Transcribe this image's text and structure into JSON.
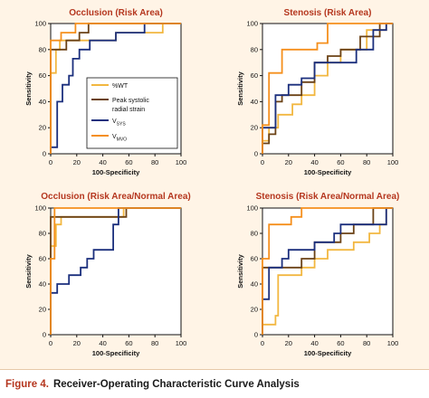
{
  "colors": {
    "panel_background": "#fff4e6",
    "plot_background": "#ffffff",
    "title": "#b5371f",
    "caption_label": "#b5371f",
    "series_wt": "#f2b740",
    "series_strain": "#6b4216",
    "series_vsys": "#1b2f7d",
    "series_vmvo": "#f58f1c"
  },
  "caption": {
    "label": "Figure 4.",
    "text": "Receiver-Operating Characteristic Curve Analysis"
  },
  "legend": {
    "placement": "inside first chart, lower-right",
    "entries": [
      {
        "text": "%WT",
        "color": "#f2b740"
      },
      {
        "text": "Peak systolic",
        "text2": "radial strain",
        "color": "#6b4216"
      },
      {
        "text": "V",
        "sub": "SYS",
        "color": "#1b2f7d"
      },
      {
        "text": "V",
        "sub": "MVO",
        "color": "#f58f1c"
      }
    ]
  },
  "chart_data": [
    {
      "type": "line",
      "title": "Occlusion (Risk Area)",
      "xlabel": "100-Specificity",
      "ylabel": "Sensitivity",
      "xlim": [
        0,
        100
      ],
      "ylim": [
        0,
        100
      ],
      "xticks": [
        0,
        20,
        40,
        60,
        80,
        100
      ],
      "yticks": [
        0,
        20,
        40,
        60,
        80,
        100
      ],
      "series": [
        {
          "key": "wt",
          "color": "#f2b740",
          "points": [
            [
              0,
              0
            ],
            [
              0,
              62
            ],
            [
              4,
              62
            ],
            [
              4,
              80
            ],
            [
              7,
              80
            ],
            [
              7,
              87
            ],
            [
              50,
              87
            ],
            [
              50,
              93
            ],
            [
              86,
              93
            ],
            [
              86,
              100
            ],
            [
              100,
              100
            ]
          ]
        },
        {
          "key": "strain",
          "color": "#6b4216",
          "points": [
            [
              0,
              0
            ],
            [
              0,
              80
            ],
            [
              12,
              80
            ],
            [
              12,
              87
            ],
            [
              22,
              87
            ],
            [
              22,
              93
            ],
            [
              29,
              93
            ],
            [
              29,
              100
            ],
            [
              100,
              100
            ]
          ]
        },
        {
          "key": "vsys",
          "color": "#1b2f7d",
          "points": [
            [
              0,
              0
            ],
            [
              0,
              5
            ],
            [
              5,
              5
            ],
            [
              5,
              40
            ],
            [
              9,
              40
            ],
            [
              9,
              53
            ],
            [
              14,
              53
            ],
            [
              14,
              60
            ],
            [
              17,
              60
            ],
            [
              17,
              73
            ],
            [
              22,
              73
            ],
            [
              22,
              80
            ],
            [
              30,
              80
            ],
            [
              30,
              87
            ],
            [
              50,
              87
            ],
            [
              50,
              93
            ],
            [
              72,
              93
            ],
            [
              72,
              100
            ],
            [
              100,
              100
            ]
          ]
        },
        {
          "key": "vmvo",
          "color": "#f58f1c",
          "points": [
            [
              0,
              0
            ],
            [
              0,
              87
            ],
            [
              8,
              87
            ],
            [
              8,
              93
            ],
            [
              19,
              93
            ],
            [
              19,
              100
            ],
            [
              100,
              100
            ]
          ]
        }
      ]
    },
    {
      "type": "line",
      "title": "Stenosis (Risk Area)",
      "xlabel": "100-Specificity",
      "ylabel": "Sensitivity",
      "xlim": [
        0,
        100
      ],
      "ylim": [
        0,
        100
      ],
      "xticks": [
        0,
        20,
        40,
        60,
        80,
        100
      ],
      "yticks": [
        0,
        20,
        40,
        60,
        80,
        100
      ],
      "series": [
        {
          "key": "wt",
          "color": "#f2b740",
          "points": [
            [
              0,
              0
            ],
            [
              0,
              10
            ],
            [
              5,
              10
            ],
            [
              5,
              20
            ],
            [
              12,
              20
            ],
            [
              12,
              30
            ],
            [
              23,
              30
            ],
            [
              23,
              38
            ],
            [
              30,
              38
            ],
            [
              30,
              45
            ],
            [
              40,
              45
            ],
            [
              40,
              60
            ],
            [
              50,
              60
            ],
            [
              50,
              70
            ],
            [
              60,
              70
            ],
            [
              60,
              80
            ],
            [
              80,
              80
            ],
            [
              80,
              95
            ],
            [
              95,
              95
            ],
            [
              95,
              100
            ],
            [
              100,
              100
            ]
          ]
        },
        {
          "key": "strain",
          "color": "#6b4216",
          "points": [
            [
              0,
              0
            ],
            [
              0,
              8
            ],
            [
              5,
              8
            ],
            [
              5,
              15
            ],
            [
              10,
              15
            ],
            [
              10,
              40
            ],
            [
              15,
              40
            ],
            [
              15,
              45
            ],
            [
              30,
              45
            ],
            [
              30,
              55
            ],
            [
              40,
              55
            ],
            [
              40,
              70
            ],
            [
              50,
              70
            ],
            [
              50,
              75
            ],
            [
              60,
              75
            ],
            [
              60,
              80
            ],
            [
              75,
              80
            ],
            [
              75,
              90
            ],
            [
              90,
              90
            ],
            [
              90,
              100
            ],
            [
              100,
              100
            ]
          ]
        },
        {
          "key": "vsys",
          "color": "#1b2f7d",
          "points": [
            [
              0,
              0
            ],
            [
              0,
              20
            ],
            [
              10,
              20
            ],
            [
              10,
              45
            ],
            [
              20,
              45
            ],
            [
              20,
              53
            ],
            [
              30,
              53
            ],
            [
              30,
              58
            ],
            [
              40,
              58
            ],
            [
              40,
              70
            ],
            [
              72,
              70
            ],
            [
              72,
              80
            ],
            [
              85,
              80
            ],
            [
              85,
              95
            ],
            [
              95,
              95
            ],
            [
              95,
              100
            ],
            [
              100,
              100
            ]
          ]
        },
        {
          "key": "vmvo",
          "color": "#f58f1c",
          "points": [
            [
              0,
              0
            ],
            [
              0,
              22
            ],
            [
              5,
              22
            ],
            [
              5,
              62
            ],
            [
              15,
              62
            ],
            [
              15,
              80
            ],
            [
              42,
              80
            ],
            [
              42,
              85
            ],
            [
              50,
              85
            ],
            [
              50,
              100
            ],
            [
              100,
              100
            ]
          ]
        }
      ]
    },
    {
      "type": "line",
      "title": "Occlusion (Risk Area/Normal Area)",
      "xlabel": "100-Specificity",
      "ylabel": "Sensitivity",
      "xlim": [
        0,
        100
      ],
      "ylim": [
        0,
        100
      ],
      "xticks": [
        0,
        20,
        40,
        60,
        80,
        100
      ],
      "yticks": [
        0,
        20,
        40,
        60,
        80,
        100
      ],
      "series": [
        {
          "key": "wt",
          "color": "#f2b740",
          "points": [
            [
              0,
              0
            ],
            [
              0,
              70
            ],
            [
              4,
              70
            ],
            [
              4,
              87
            ],
            [
              8,
              87
            ],
            [
              8,
              93
            ],
            [
              56,
              93
            ],
            [
              56,
              100
            ],
            [
              100,
              100
            ]
          ]
        },
        {
          "key": "strain",
          "color": "#6b4216",
          "points": [
            [
              0,
              0
            ],
            [
              0,
              93
            ],
            [
              58,
              93
            ],
            [
              58,
              100
            ],
            [
              100,
              100
            ]
          ]
        },
        {
          "key": "vsys",
          "color": "#1b2f7d",
          "points": [
            [
              0,
              0
            ],
            [
              0,
              33
            ],
            [
              5,
              33
            ],
            [
              5,
              40
            ],
            [
              14,
              40
            ],
            [
              14,
              47
            ],
            [
              23,
              47
            ],
            [
              23,
              53
            ],
            [
              28,
              53
            ],
            [
              28,
              60
            ],
            [
              33,
              60
            ],
            [
              33,
              67
            ],
            [
              48,
              67
            ],
            [
              48,
              87
            ],
            [
              52,
              87
            ],
            [
              52,
              100
            ],
            [
              100,
              100
            ]
          ]
        },
        {
          "key": "vmvo",
          "color": "#f58f1c",
          "points": [
            [
              0,
              0
            ],
            [
              0,
              60
            ],
            [
              3,
              60
            ],
            [
              3,
              100
            ],
            [
              100,
              100
            ]
          ]
        }
      ]
    },
    {
      "type": "line",
      "title": "Stenosis (Risk Area/Normal Area)",
      "xlabel": "100-Specificity",
      "ylabel": "Sensitivity",
      "xlim": [
        0,
        100
      ],
      "ylim": [
        0,
        100
      ],
      "xticks": [
        0,
        20,
        40,
        60,
        80,
        100
      ],
      "yticks": [
        0,
        20,
        40,
        60,
        80,
        100
      ],
      "series": [
        {
          "key": "wt",
          "color": "#f2b740",
          "points": [
            [
              0,
              0
            ],
            [
              0,
              8
            ],
            [
              10,
              8
            ],
            [
              10,
              15
            ],
            [
              12,
              15
            ],
            [
              12,
              47
            ],
            [
              30,
              47
            ],
            [
              30,
              53
            ],
            [
              40,
              53
            ],
            [
              40,
              60
            ],
            [
              50,
              60
            ],
            [
              50,
              67
            ],
            [
              70,
              67
            ],
            [
              70,
              73
            ],
            [
              82,
              73
            ],
            [
              82,
              80
            ],
            [
              90,
              80
            ],
            [
              90,
              87
            ],
            [
              95,
              87
            ],
            [
              95,
              100
            ],
            [
              100,
              100
            ]
          ]
        },
        {
          "key": "strain",
          "color": "#6b4216",
          "points": [
            [
              0,
              0
            ],
            [
              0,
              53
            ],
            [
              30,
              53
            ],
            [
              30,
              60
            ],
            [
              40,
              60
            ],
            [
              40,
              73
            ],
            [
              60,
              73
            ],
            [
              60,
              80
            ],
            [
              70,
              80
            ],
            [
              70,
              87
            ],
            [
              85,
              87
            ],
            [
              85,
              100
            ],
            [
              100,
              100
            ]
          ]
        },
        {
          "key": "vsys",
          "color": "#1b2f7d",
          "points": [
            [
              0,
              0
            ],
            [
              0,
              28
            ],
            [
              5,
              28
            ],
            [
              5,
              53
            ],
            [
              15,
              53
            ],
            [
              15,
              60
            ],
            [
              20,
              60
            ],
            [
              20,
              67
            ],
            [
              40,
              67
            ],
            [
              40,
              73
            ],
            [
              55,
              73
            ],
            [
              55,
              80
            ],
            [
              60,
              80
            ],
            [
              60,
              87
            ],
            [
              95,
              87
            ],
            [
              95,
              100
            ],
            [
              100,
              100
            ]
          ]
        },
        {
          "key": "vmvo",
          "color": "#f58f1c",
          "points": [
            [
              0,
              0
            ],
            [
              0,
              60
            ],
            [
              5,
              60
            ],
            [
              5,
              87
            ],
            [
              22,
              87
            ],
            [
              22,
              93
            ],
            [
              30,
              93
            ],
            [
              30,
              100
            ],
            [
              100,
              100
            ]
          ]
        }
      ]
    }
  ]
}
